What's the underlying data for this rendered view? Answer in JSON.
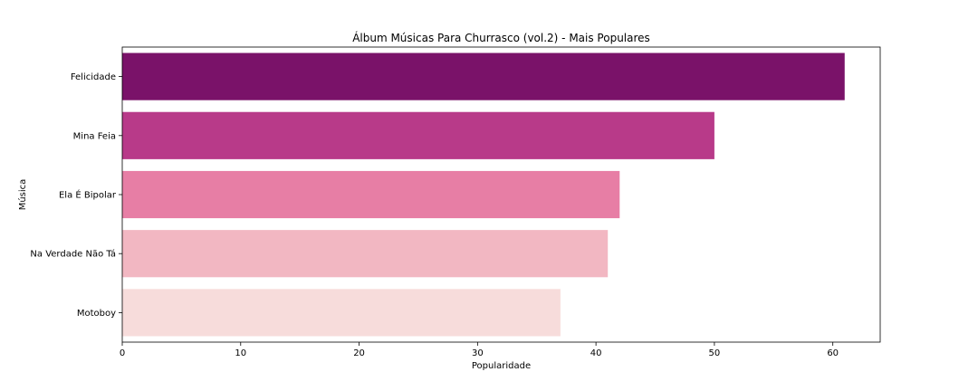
{
  "chart_data": {
    "type": "bar",
    "orientation": "horizontal",
    "title": "Álbum Músicas Para Churrasco (vol.2) - Mais Populares",
    "xlabel": "Popularidade",
    "ylabel": "Música",
    "categories": [
      "Felicidade",
      "Mina Feia",
      "Ela É Bipolar",
      "Na Verdade Não Tá",
      "Motoboy"
    ],
    "values": [
      61,
      50,
      42,
      41,
      37
    ],
    "colors": [
      "#7a1269",
      "#b83a89",
      "#e77ea5",
      "#f2b7c2",
      "#f7dcdb"
    ],
    "xlim": [
      0,
      64
    ],
    "xticks": [
      0,
      10,
      20,
      30,
      40,
      50,
      60
    ],
    "grid": false,
    "legend": "none"
  }
}
